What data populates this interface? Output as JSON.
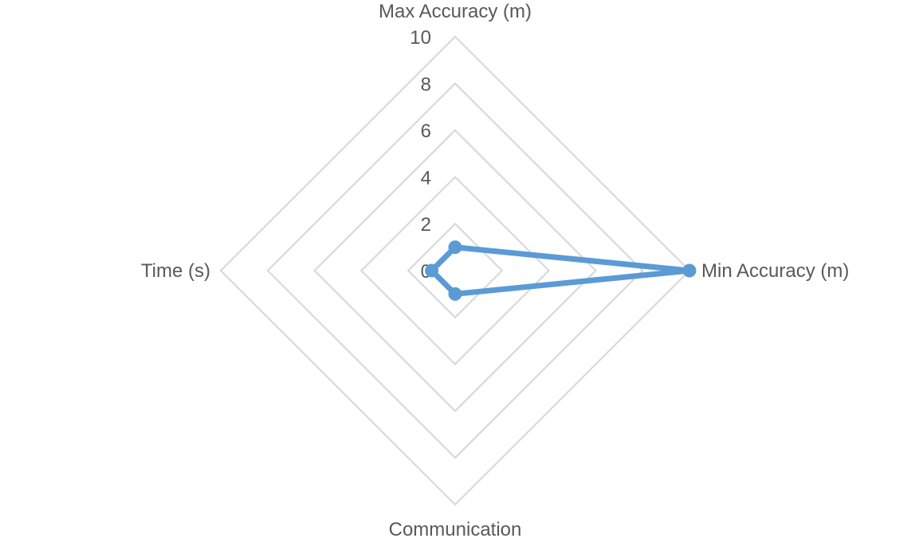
{
  "chart_data": {
    "type": "radar",
    "title": "",
    "axes": [
      "Max Accuracy (m)",
      "Min Accuracy (m)",
      "Communication",
      "Time (s)"
    ],
    "rlim": [
      0,
      10
    ],
    "ticks": [
      "0",
      "2",
      "4",
      "6",
      "8",
      "10"
    ],
    "grid": true,
    "legend": "none",
    "series": [
      {
        "values": [
          1,
          10,
          1,
          1
        ],
        "color": "#5b9bd5"
      }
    ],
    "grid_color": "#d9d9d9",
    "text_color": "#595959"
  }
}
